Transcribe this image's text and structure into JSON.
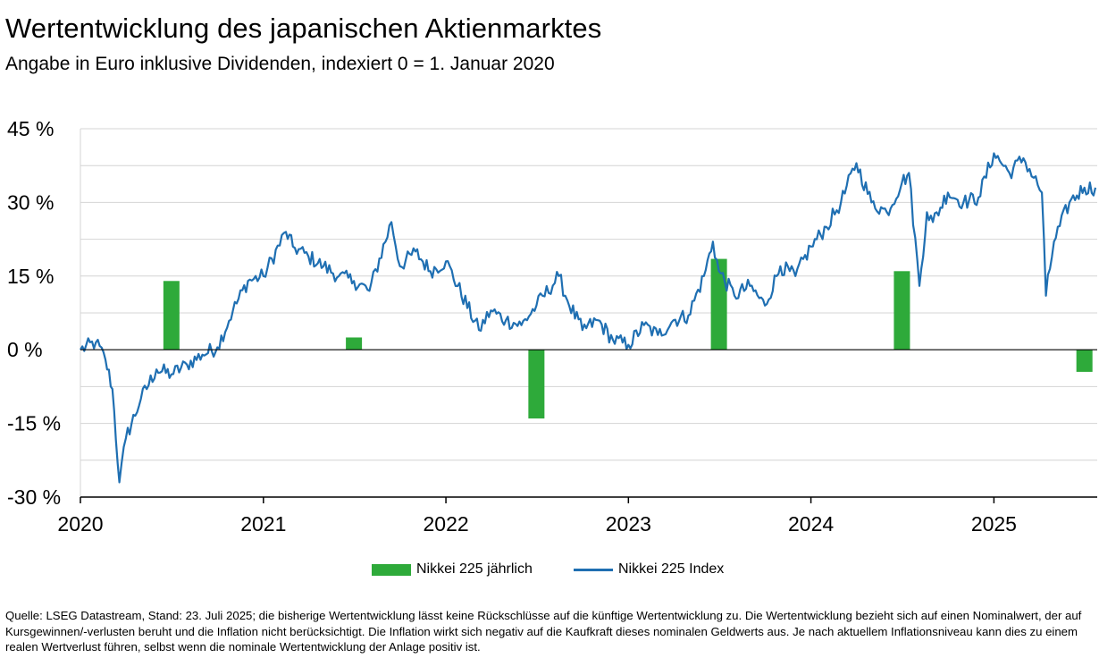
{
  "title": "Wertentwicklung des japanischen Aktienmarktes",
  "subtitle": "Angabe in Euro inklusive Dividenden, indexiert 0 = 1. Januar 2020",
  "source": "Quelle: LSEG Datastream, Stand: 23. Juli 2025; die bisherige Wertentwicklung lässt keine Rückschlüsse auf die künftige Wertentwicklung zu. Die Wertentwicklung bezieht sich auf einen Nominalwert, der auf Kursgewinnen/-verlusten beruht und die Inflation nicht berücksichtigt. Die Inflation wirkt sich negativ auf die Kaufkraft dieses nominalen Geldwerts aus. Je nach aktuellem Inflationsniveau kann dies zu einem realen Wertverlust führen, selbst wenn die nominale Wertentwicklung der Anlage positiv ist.",
  "colors": {
    "bar": "#2eaa3a",
    "line": "#1f6fb2",
    "grid": "#d4d4d4",
    "axis": "#000000"
  },
  "chart_data": {
    "type": "bar+line",
    "ylim": [
      -30,
      45
    ],
    "y_ticks": [
      45,
      30,
      15,
      0,
      -15,
      -30
    ],
    "y_tick_labels": [
      "45 %",
      "30 %",
      "15 %",
      "0 %",
      "-15 %",
      "-30 %"
    ],
    "x_range": [
      "2020-01-01",
      "2025-07-23"
    ],
    "x_tick_labels": [
      "2020",
      "2021",
      "2022",
      "2023",
      "2024",
      "2025"
    ],
    "grid": "horizontal",
    "legend_position": "bottom-center",
    "series": [
      {
        "name": "Nikkei 225 jährlich",
        "type": "bar",
        "x": [
          "2020-07-01",
          "2021-07-01",
          "2022-07-01",
          "2023-07-01",
          "2024-07-01",
          "2025-07-01"
        ],
        "values": [
          14,
          2.5,
          -14,
          18.5,
          16,
          -4.5
        ]
      },
      {
        "name": "Nikkei 225 Index",
        "type": "line",
        "x": [
          "2020-01-01",
          "2020-02-01",
          "2020-02-20",
          "2020-03-05",
          "2020-03-19",
          "2020-04-01",
          "2020-05-01",
          "2020-06-01",
          "2020-07-01",
          "2020-08-01",
          "2020-09-01",
          "2020-10-01",
          "2020-11-01",
          "2020-12-01",
          "2021-01-01",
          "2021-02-15",
          "2021-03-01",
          "2021-04-01",
          "2021-05-01",
          "2021-06-01",
          "2021-07-01",
          "2021-08-01",
          "2021-09-14",
          "2021-10-01",
          "2021-11-01",
          "2021-12-01",
          "2022-01-01",
          "2022-03-08",
          "2022-04-01",
          "2022-05-01",
          "2022-06-01",
          "2022-07-01",
          "2022-08-15",
          "2022-09-01",
          "2022-10-01",
          "2022-11-01",
          "2022-12-01",
          "2023-01-01",
          "2023-02-01",
          "2023-03-01",
          "2023-04-01",
          "2023-05-01",
          "2023-06-01",
          "2023-06-19",
          "2023-07-01",
          "2023-08-01",
          "2023-09-01",
          "2023-10-01",
          "2023-11-01",
          "2023-12-01",
          "2024-01-01",
          "2024-02-01",
          "2024-03-01",
          "2024-04-01",
          "2024-05-01",
          "2024-06-01",
          "2024-07-01",
          "2024-07-15",
          "2024-08-05",
          "2024-08-20",
          "2024-09-01",
          "2024-10-01",
          "2024-11-01",
          "2024-12-01",
          "2025-01-01",
          "2025-02-01",
          "2025-03-01",
          "2025-04-07",
          "2025-04-15",
          "2025-05-01",
          "2025-06-01",
          "2025-07-01",
          "2025-07-23"
        ],
        "values": [
          0,
          1.5,
          -2,
          -8,
          -27,
          -18,
          -10,
          -4,
          -5,
          -3,
          -1,
          0.5,
          8,
          14,
          15,
          24,
          21,
          19,
          17,
          15,
          14,
          12,
          26,
          17,
          20,
          16,
          18,
          4,
          8,
          6,
          5,
          9,
          15,
          10,
          4,
          6,
          2,
          1,
          5,
          3,
          6,
          7,
          15,
          22,
          16,
          11,
          13,
          9,
          17,
          15,
          21,
          25,
          30,
          38,
          30,
          28,
          34,
          36,
          13,
          28,
          26,
          32,
          30,
          31,
          40,
          36,
          39,
          32,
          11,
          22,
          30,
          33,
          33
        ]
      }
    ]
  }
}
